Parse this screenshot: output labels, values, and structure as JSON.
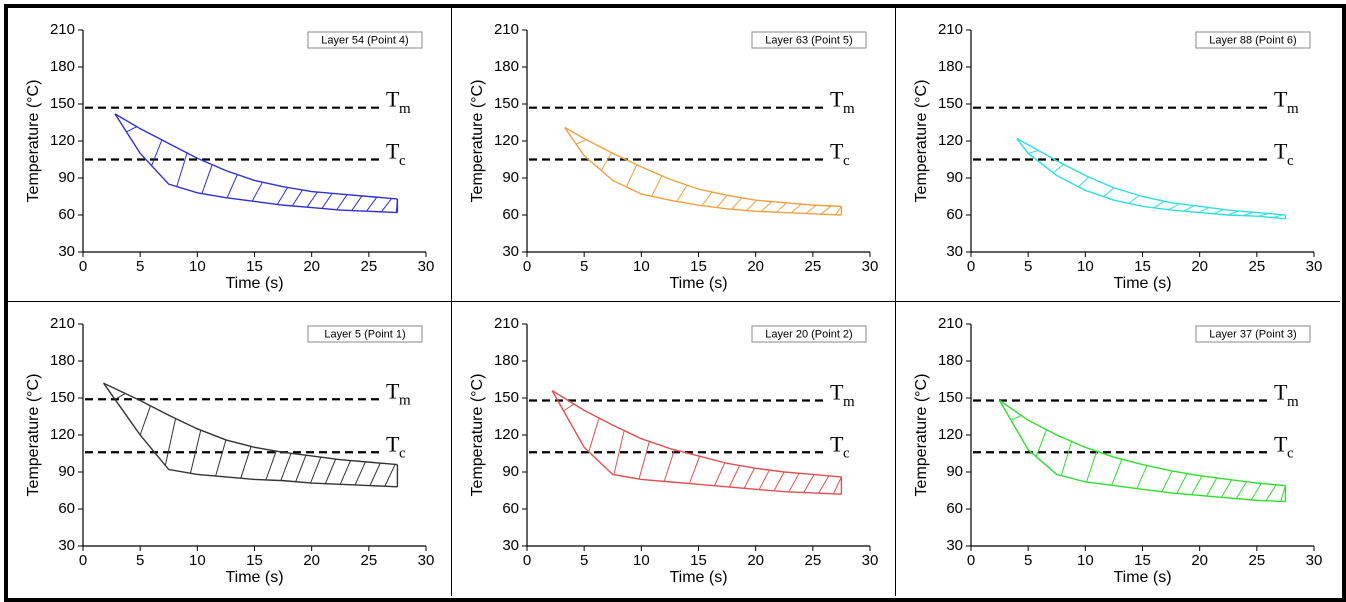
{
  "chart_data": [
    {
      "type": "area",
      "title": "Layer 54 (Point 4)",
      "xlabel": "Time (s)",
      "ylabel": "Temperature (°C)",
      "color": "#3030d0",
      "x": [
        2.8,
        5,
        7.5,
        10,
        12.5,
        15,
        17.5,
        20,
        22.5,
        25,
        27.5
      ],
      "series": [
        {
          "values": [
            142,
            130,
            118,
            106,
            96,
            88,
            83,
            79,
            77,
            75,
            73
          ]
        },
        {
          "values": [
            142,
            110,
            85,
            78,
            74,
            71,
            68,
            66,
            64,
            63,
            62
          ]
        }
      ],
      "reference_lines": [
        {
          "value": 147,
          "label": "T",
          "subscript": "m"
        },
        {
          "value": 105,
          "label": "T",
          "subscript": "c"
        }
      ],
      "xlim": [
        0,
        30
      ],
      "ylim": [
        30,
        210
      ],
      "xticks": [
        0,
        5,
        10,
        15,
        20,
        25,
        30
      ],
      "yticks": [
        30,
        60,
        90,
        120,
        150,
        180,
        210
      ]
    },
    {
      "type": "area",
      "title": "Layer 63 (Point 5)",
      "xlabel": "Time (s)",
      "ylabel": "Temperature (°C)",
      "color": "#f0a040",
      "x": [
        3.3,
        5,
        7.5,
        10,
        12.5,
        15,
        17.5,
        20,
        22.5,
        25,
        27.5
      ],
      "series": [
        {
          "values": [
            131,
            122,
            110,
            99,
            89,
            81,
            76,
            72,
            70,
            68,
            67
          ]
        },
        {
          "values": [
            131,
            108,
            88,
            77,
            72,
            68,
            65,
            63,
            62,
            61,
            60
          ]
        }
      ],
      "reference_lines": [
        {
          "value": 147,
          "label": "T",
          "subscript": "m"
        },
        {
          "value": 105,
          "label": "T",
          "subscript": "c"
        }
      ],
      "xlim": [
        0,
        30
      ],
      "ylim": [
        30,
        210
      ],
      "xticks": [
        0,
        5,
        10,
        15,
        20,
        25,
        30
      ],
      "yticks": [
        30,
        60,
        90,
        120,
        150,
        180,
        210
      ]
    },
    {
      "type": "area",
      "title": "Layer 88 (Point 6)",
      "xlabel": "Time (s)",
      "ylabel": "Temperature (°C)",
      "color": "#30dede",
      "x": [
        4,
        5,
        7.5,
        10,
        12.5,
        15,
        17.5,
        20,
        22.5,
        25,
        27.5
      ],
      "series": [
        {
          "values": [
            122,
            117,
            104,
            92,
            82,
            75,
            70,
            67,
            64,
            62,
            60
          ]
        },
        {
          "values": [
            122,
            110,
            92,
            80,
            72,
            67,
            64,
            62,
            60,
            59,
            57
          ]
        }
      ],
      "reference_lines": [
        {
          "value": 147,
          "label": "T",
          "subscript": "m"
        },
        {
          "value": 105,
          "label": "T",
          "subscript": "c"
        }
      ],
      "xlim": [
        0,
        30
      ],
      "ylim": [
        30,
        210
      ],
      "xticks": [
        0,
        5,
        10,
        15,
        20,
        25,
        30
      ],
      "yticks": [
        30,
        60,
        90,
        120,
        150,
        180,
        210
      ]
    },
    {
      "type": "area",
      "title": "Layer 5 (Point 1)",
      "xlabel": "Time (s)",
      "ylabel": "Temperature (°C)",
      "color": "#333333",
      "x": [
        1.8,
        5,
        7.5,
        10,
        12.5,
        15,
        17.5,
        20,
        22.5,
        25,
        27.5
      ],
      "series": [
        {
          "values": [
            162,
            148,
            136,
            125,
            116,
            110,
            106,
            103,
            100,
            98,
            96
          ]
        },
        {
          "values": [
            162,
            120,
            92,
            88,
            86,
            84,
            83,
            81,
            80,
            79,
            78
          ]
        }
      ],
      "reference_lines": [
        {
          "value": 149,
          "label": "T",
          "subscript": "m"
        },
        {
          "value": 106,
          "label": "T",
          "subscript": "c"
        }
      ],
      "xlim": [
        0,
        30
      ],
      "ylim": [
        30,
        210
      ],
      "xticks": [
        0,
        5,
        10,
        15,
        20,
        25,
        30
      ],
      "yticks": [
        30,
        60,
        90,
        120,
        150,
        180,
        210
      ]
    },
    {
      "type": "area",
      "title": "Layer 20 (Point 2)",
      "xlabel": "Time (s)",
      "ylabel": "Temperature (°C)",
      "color": "#e05050",
      "x": [
        2.2,
        5,
        7.5,
        10,
        12.5,
        15,
        17.5,
        20,
        22.5,
        25,
        27.5
      ],
      "series": [
        {
          "values": [
            156,
            140,
            128,
            117,
            109,
            103,
            97,
            93,
            90,
            88,
            86
          ]
        },
        {
          "values": [
            156,
            110,
            88,
            84,
            82,
            80,
            78,
            76,
            74,
            73,
            72
          ]
        }
      ],
      "reference_lines": [
        {
          "value": 148,
          "label": "T",
          "subscript": "m"
        },
        {
          "value": 106,
          "label": "T",
          "subscript": "c"
        }
      ],
      "xlim": [
        0,
        30
      ],
      "ylim": [
        30,
        210
      ],
      "xticks": [
        0,
        5,
        10,
        15,
        20,
        25,
        30
      ],
      "yticks": [
        30,
        60,
        90,
        120,
        150,
        180,
        210
      ]
    },
    {
      "type": "area",
      "title": "Layer 37 (Point 3)",
      "xlabel": "Time (s)",
      "ylabel": "Temperature (°C)",
      "color": "#30dd30",
      "x": [
        2.5,
        5,
        7.5,
        10,
        12.5,
        15,
        17.5,
        20,
        22.5,
        25,
        27.5
      ],
      "series": [
        {
          "values": [
            148,
            132,
            120,
            110,
            102,
            96,
            91,
            87,
            84,
            81,
            79
          ]
        },
        {
          "values": [
            148,
            108,
            88,
            82,
            79,
            76,
            73,
            71,
            69,
            67,
            66
          ]
        }
      ],
      "reference_lines": [
        {
          "value": 148,
          "label": "T",
          "subscript": "m"
        },
        {
          "value": 106,
          "label": "T",
          "subscript": "c"
        }
      ],
      "xlim": [
        0,
        30
      ],
      "ylim": [
        30,
        210
      ],
      "xticks": [
        0,
        5,
        10,
        15,
        20,
        25,
        30
      ],
      "yticks": [
        30,
        60,
        90,
        120,
        150,
        180,
        210
      ]
    }
  ]
}
